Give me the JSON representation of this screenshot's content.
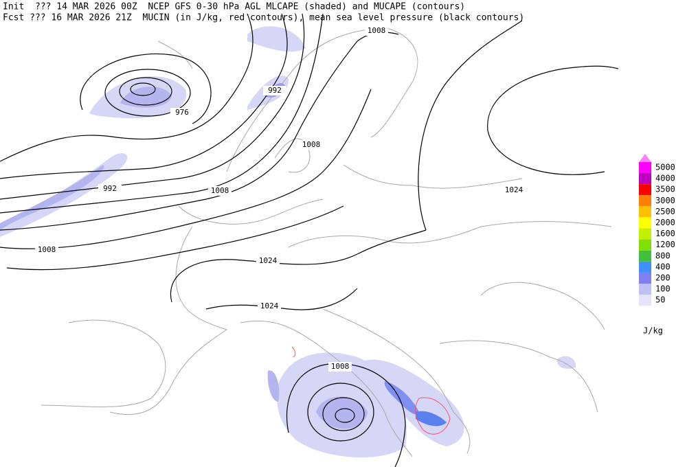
{
  "header": {
    "line1": "Init  ??? 14 MAR 2026 00Z  NCEP GFS 0-30 hPa AGL MLCAPE (shaded) and MUCAPE (contours)",
    "line2": "Fcst ??? 16 MAR 2026 21Z  MUCIN (in J/kg, red contours), mean sea level pressure (black contours)"
  },
  "contour_labels": [
    "1008",
    "992",
    "976",
    "1008",
    "992",
    "1008",
    "1008",
    "1024",
    "1024",
    "1024",
    "1008"
  ],
  "legend": {
    "levels": [
      5000,
      4000,
      3500,
      3000,
      2500,
      2000,
      1600,
      1200,
      800,
      400,
      200,
      100,
      50
    ],
    "colors": [
      "#ff00ff",
      "#c000c0",
      "#ff0000",
      "#ff8000",
      "#ffc000",
      "#ffff00",
      "#c0f000",
      "#80e000",
      "#40c040",
      "#4090ff",
      "#8080f0",
      "#c0c0f4",
      "#e4e4fa"
    ],
    "top_color": "#ff80ff",
    "unit": "J/kg"
  }
}
